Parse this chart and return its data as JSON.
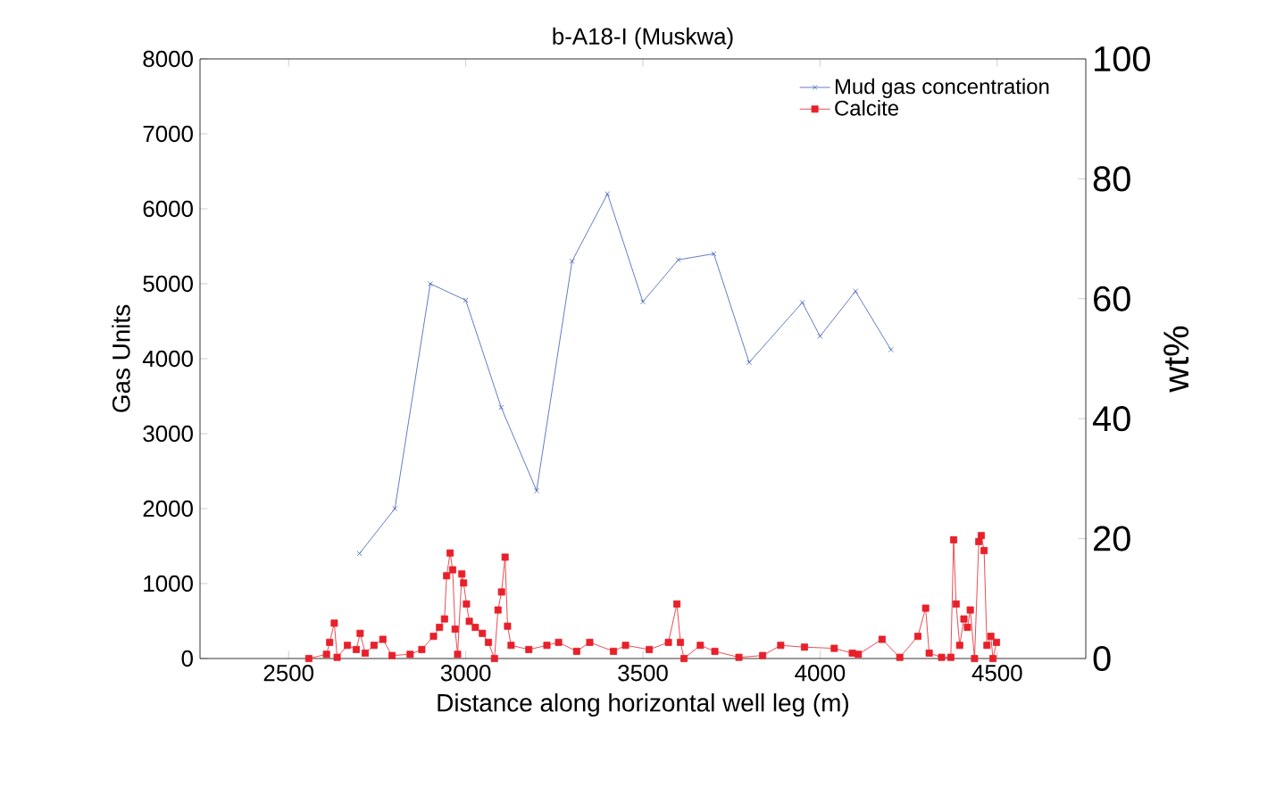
{
  "chart_data": {
    "type": "line",
    "title": "b-A18-I (Muskwa)",
    "xlabel": "Distance along horizontal well leg (m)",
    "ylabel": "Gas Units",
    "y2label": "wt%",
    "xlim": [
      2250,
      4750
    ],
    "xticks": [
      2500,
      3000,
      3500,
      4000,
      4500
    ],
    "ylim": [
      0,
      8000
    ],
    "yticks": [
      0,
      1000,
      2000,
      3000,
      4000,
      5000,
      6000,
      7000,
      8000
    ],
    "y2lim": [
      0,
      100
    ],
    "y2ticks": [
      0,
      20,
      40,
      60,
      80,
      100
    ],
    "legend": "top right",
    "grid": false,
    "line_style": "solid",
    "series": [
      {
        "name": "Mud gas concentration",
        "color": "#3b5bb5",
        "marker": "cross",
        "x": [
          2700,
          2800,
          2900,
          3000,
          3100,
          3200,
          3300,
          3400,
          3500,
          3600,
          3700,
          3800,
          3950,
          4000,
          4100,
          4200
        ],
        "values": [
          1400,
          2000,
          5000,
          4780,
          3350,
          2240,
          5300,
          6200,
          4760,
          5320,
          5400,
          3950,
          4750,
          4300,
          4900,
          4120
        ]
      },
      {
        "name": "Calcite",
        "color": "#e8202a",
        "marker": "square",
        "axis": "y2",
        "x": [
          2557,
          2607,
          2616,
          2629,
          2637,
          2666,
          2691,
          2702,
          2716,
          2741,
          2766,
          2792,
          2843,
          2876,
          2909,
          2926,
          2940,
          2946,
          2956,
          2963,
          2970,
          2977,
          2989,
          2994,
          3002,
          3010,
          3027,
          3047,
          3064,
          3081,
          3091,
          3101,
          3111,
          3118,
          3128,
          3178,
          3229,
          3262,
          3313,
          3350,
          3417,
          3451,
          3518,
          3572,
          3596,
          3606,
          3616,
          3662,
          3703,
          3771,
          3838,
          3889,
          3956,
          4040,
          4091,
          4108,
          4175,
          4225,
          4276,
          4298,
          4308,
          4343,
          4369,
          4377,
          4384,
          4394,
          4406,
          4416,
          4424,
          4436,
          4448,
          4455,
          4463,
          4471,
          4482,
          4488,
          4498
        ],
        "values": [
          0,
          0.7,
          2.7,
          5.9,
          0.2,
          2.2,
          1.5,
          4.2,
          0.9,
          2.2,
          3.2,
          0.5,
          0.7,
          1.5,
          3.7,
          5.2,
          6.6,
          13.8,
          17.6,
          14.8,
          4.9,
          0.7,
          14.1,
          12.6,
          9.1,
          6.2,
          5.2,
          4.2,
          2.7,
          0,
          8.1,
          11.1,
          16.9,
          5.4,
          2.2,
          1.5,
          2.2,
          2.7,
          1.2,
          2.7,
          1.2,
          2.2,
          1.5,
          2.7,
          9.1,
          2.7,
          0,
          2.2,
          1.2,
          0.2,
          0.5,
          2.2,
          1.9,
          1.7,
          0.9,
          0.7,
          3.2,
          0.2,
          3.7,
          8.4,
          0.9,
          0.2,
          0.2,
          19.8,
          9.1,
          2.2,
          6.6,
          5.2,
          8.1,
          0,
          19.5,
          20.5,
          18.0,
          2.2,
          3.7,
          0,
          2.7
        ]
      }
    ]
  }
}
